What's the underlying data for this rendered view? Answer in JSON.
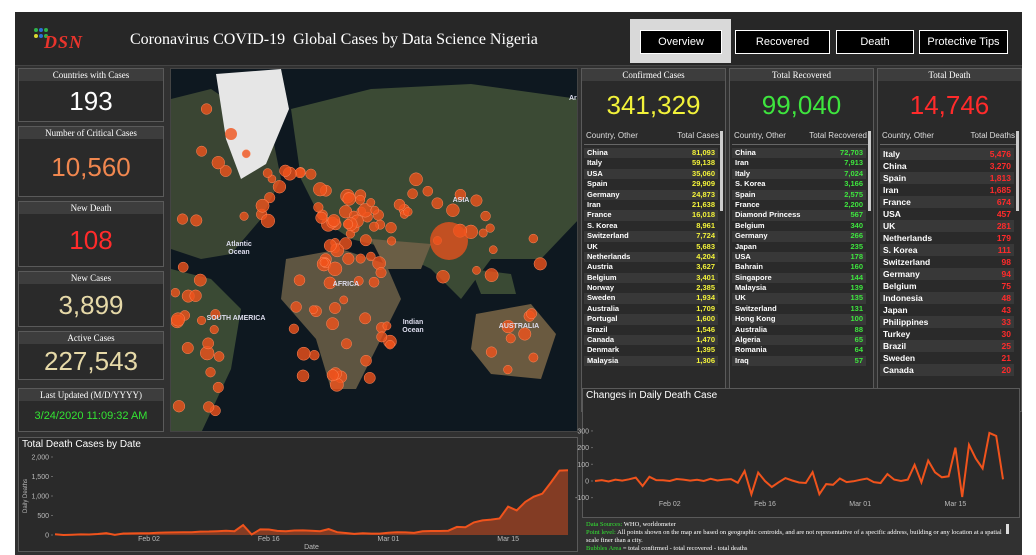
{
  "header": {
    "logo": "DSN",
    "title": "Coronavirus COVID-19  Global Cases by Data Science Nigeria",
    "tabs": [
      "Overview",
      "Recovered",
      "Death",
      "Protective Tips"
    ]
  },
  "kpis": [
    {
      "label": "Countries with Cases",
      "value": "193",
      "color": "#ffffff"
    },
    {
      "label": "Number of Critical Cases",
      "value": "10,560",
      "color": "#f0874f"
    },
    {
      "label": "New Death",
      "value": "108",
      "color": "#ff2b2b"
    },
    {
      "label": "New Cases",
      "value": "3,899",
      "color": "#e6d9a8"
    },
    {
      "label": "Active Cases",
      "value": "227,543",
      "color": "#e6d9a8"
    }
  ],
  "last_updated": {
    "label": "Last Updated (M/D/YYYY)",
    "value": "3/24/2020 11:09:32 AM",
    "color": "#33e533"
  },
  "map": {
    "labels": [
      "Arct",
      "Atlantic Ocean",
      "AFRICA",
      "ASIA",
      "SOUTH AMERICA",
      "Indian Ocean",
      "AUSTRALIA"
    ]
  },
  "panels": [
    {
      "title": "Confirmed Cases",
      "total": "341,329",
      "color": "#f2f23a",
      "columns": [
        "Country, Other",
        "Total Cases"
      ],
      "rows": [
        [
          "China",
          "81,093"
        ],
        [
          "Italy",
          "59,138"
        ],
        [
          "USA",
          "35,060"
        ],
        [
          "Spain",
          "29,909"
        ],
        [
          "Germany",
          "24,873"
        ],
        [
          "Iran",
          "21,638"
        ],
        [
          "France",
          "16,018"
        ],
        [
          "S. Korea",
          "8,961"
        ],
        [
          "Switzerland",
          "7,724"
        ],
        [
          "UK",
          "5,683"
        ],
        [
          "Netherlands",
          "4,204"
        ],
        [
          "Austria",
          "3,627"
        ],
        [
          "Belgium",
          "3,401"
        ],
        [
          "Norway",
          "2,385"
        ],
        [
          "Sweden",
          "1,934"
        ],
        [
          "Australia",
          "1,709"
        ],
        [
          "Portugal",
          "1,600"
        ],
        [
          "Brazil",
          "1,546"
        ],
        [
          "Canada",
          "1,470"
        ],
        [
          "Denmark",
          "1,395"
        ],
        [
          "Malaysia",
          "1,306"
        ]
      ]
    },
    {
      "title": "Total Recovered",
      "total": "99,040",
      "color": "#3ee53e",
      "columns": [
        "Country, Other",
        "Total Recovered"
      ],
      "rows": [
        [
          "China",
          "72,703"
        ],
        [
          "Iran",
          "7,913"
        ],
        [
          "Italy",
          "7,024"
        ],
        [
          "S. Korea",
          "3,166"
        ],
        [
          "Spain",
          "2,575"
        ],
        [
          "France",
          "2,200"
        ],
        [
          "Diamond Princess",
          "567"
        ],
        [
          "Belgium",
          "340"
        ],
        [
          "Germany",
          "266"
        ],
        [
          "Japan",
          "235"
        ],
        [
          "USA",
          "178"
        ],
        [
          "Bahrain",
          "160"
        ],
        [
          "Singapore",
          "144"
        ],
        [
          "Malaysia",
          "139"
        ],
        [
          "UK",
          "135"
        ],
        [
          "Switzerland",
          "131"
        ],
        [
          "Hong Kong",
          "100"
        ],
        [
          "Australia",
          "88"
        ],
        [
          "Algeria",
          "65"
        ],
        [
          "Romania",
          "64"
        ],
        [
          "Iraq",
          "57"
        ]
      ]
    },
    {
      "title": "Total Death",
      "total": "14,746",
      "color": "#ff2b2b",
      "columns": [
        "Country, Other",
        "Total Deaths"
      ],
      "rows": [
        [
          "Italy",
          "5,476"
        ],
        [
          "China",
          "3,270"
        ],
        [
          "Spain",
          "1,813"
        ],
        [
          "Iran",
          "1,685"
        ],
        [
          "France",
          "674"
        ],
        [
          "USA",
          "457"
        ],
        [
          "UK",
          "281"
        ],
        [
          "Netherlands",
          "179"
        ],
        [
          "S. Korea",
          "111"
        ],
        [
          "Switzerland",
          "98"
        ],
        [
          "Germany",
          "94"
        ],
        [
          "Belgium",
          "75"
        ],
        [
          "Indonesia",
          "48"
        ],
        [
          "Japan",
          "43"
        ],
        [
          "Philippines",
          "33"
        ],
        [
          "Turkey",
          "30"
        ],
        [
          "Brazil",
          "25"
        ],
        [
          "Sweden",
          "21"
        ],
        [
          "Canada",
          "20"
        ]
      ]
    }
  ],
  "chart_data": [
    {
      "type": "area",
      "title": "Total Death Cases by Date",
      "x_label": "Date",
      "y_label": "Daily Deaths",
      "color": "#f0531c",
      "x": [
        "Jan 22",
        "Jan 23",
        "Jan 24",
        "Jan 25",
        "Jan 26",
        "Jan 27",
        "Jan 28",
        "Jan 29",
        "Jan 30",
        "Jan 31",
        "Feb 01",
        "Feb 02",
        "Feb 03",
        "Feb 04",
        "Feb 05",
        "Feb 06",
        "Feb 07",
        "Feb 08",
        "Feb 09",
        "Feb 10",
        "Feb 11",
        "Feb 12",
        "Feb 13",
        "Feb 14",
        "Feb 15",
        "Feb 16",
        "Feb 17",
        "Feb 18",
        "Feb 19",
        "Feb 20",
        "Feb 21",
        "Feb 22",
        "Feb 23",
        "Feb 24",
        "Feb 25",
        "Feb 26",
        "Feb 27",
        "Feb 28",
        "Feb 29",
        "Mar 01",
        "Mar 02",
        "Mar 03",
        "Mar 04",
        "Mar 05",
        "Mar 06",
        "Mar 07",
        "Mar 08",
        "Mar 09",
        "Mar 10",
        "Mar 11",
        "Mar 12",
        "Mar 13",
        "Mar 14",
        "Mar 15",
        "Mar 16",
        "Mar 17",
        "Mar 18",
        "Mar 19",
        "Mar 20",
        "Mar 21",
        "Mar 22"
      ],
      "values": [
        17,
        1,
        8,
        16,
        14,
        26,
        49,
        2,
        38,
        42,
        46,
        45,
        57,
        64,
        66,
        73,
        73,
        86,
        89,
        97,
        108,
        97,
        254,
        13,
        143,
        142,
        106,
        98,
        115,
        118,
        109,
        97,
        150,
        71,
        52,
        29,
        44,
        37,
        35,
        58,
        73,
        66,
        54,
        95,
        103,
        103,
        111,
        208,
        200,
        322,
        374,
        396,
        424,
        728,
        632,
        849,
        983,
        1058,
        1346,
        1650,
        1660
      ],
      "ylim": [
        0,
        2000
      ],
      "yticks": [
        0,
        500,
        {
          "value": 1000,
          "label": "1,000"
        },
        {
          "value": 1500,
          "label": "1,500"
        },
        {
          "value": 2000,
          "label": "2,000"
        }
      ],
      "xticks": [
        "Feb 02",
        "Feb 16",
        "Mar 01",
        "Mar 15"
      ]
    },
    {
      "type": "line",
      "title": "Changes in Daily Death Case",
      "color": "#f0531c",
      "x": [
        "Jan 22",
        "Jan 23",
        "Jan 24",
        "Jan 25",
        "Jan 26",
        "Jan 27",
        "Jan 28",
        "Jan 29",
        "Jan 30",
        "Jan 31",
        "Feb 01",
        "Feb 02",
        "Feb 03",
        "Feb 04",
        "Feb 05",
        "Feb 06",
        "Feb 07",
        "Feb 08",
        "Feb 09",
        "Feb 10",
        "Feb 11",
        "Feb 12",
        "Feb 13",
        "Feb 14",
        "Feb 15",
        "Feb 16",
        "Feb 17",
        "Feb 18",
        "Feb 19",
        "Feb 20",
        "Feb 21",
        "Feb 22",
        "Feb 23",
        "Feb 24",
        "Feb 25",
        "Feb 26",
        "Feb 27",
        "Feb 28",
        "Feb 29",
        "Mar 01",
        "Mar 02",
        "Mar 03",
        "Mar 04",
        "Mar 05",
        "Mar 06",
        "Mar 07",
        "Mar 08",
        "Mar 09",
        "Mar 10",
        "Mar 11",
        "Mar 12",
        "Mar 13",
        "Mar 14",
        "Mar 15",
        "Mar 16",
        "Mar 17",
        "Mar 18",
        "Mar 19",
        "Mar 20",
        "Mar 21",
        "Mar 22"
      ],
      "values": [
        0,
        5,
        -3,
        8,
        2,
        10,
        20,
        -30,
        25,
        5,
        4,
        0,
        12,
        8,
        2,
        7,
        0,
        13,
        3,
        8,
        11,
        -11,
        60,
        -80,
        50,
        0,
        -36,
        -8,
        17,
        3,
        -9,
        -12,
        53,
        -79,
        -19,
        -23,
        15,
        -7,
        -2,
        7,
        15,
        -7,
        -12,
        41,
        8,
        0,
        8,
        97,
        -8,
        122,
        52,
        22,
        28,
        200,
        -96,
        217,
        134,
        75,
        288,
        270,
        10
      ],
      "ylim": [
        -150,
        350
      ],
      "yticks": [
        -100,
        0,
        100,
        200,
        300
      ],
      "xticks": [
        "Feb 02",
        "Feb 16",
        "Mar 01",
        "Mar 15"
      ]
    }
  ],
  "footer": {
    "sources_label": "Data Sources:",
    "sources": "WHO, worldometer",
    "point_label": "Point level:",
    "point": "All points shown on the map are based on geographic centroids, and are not representative of a specific address, building or any location at a spatial scale finer than a city.",
    "bubble_label": "Bubbles Area",
    "bubble": "= total confirmed - total recovered - total deaths"
  }
}
